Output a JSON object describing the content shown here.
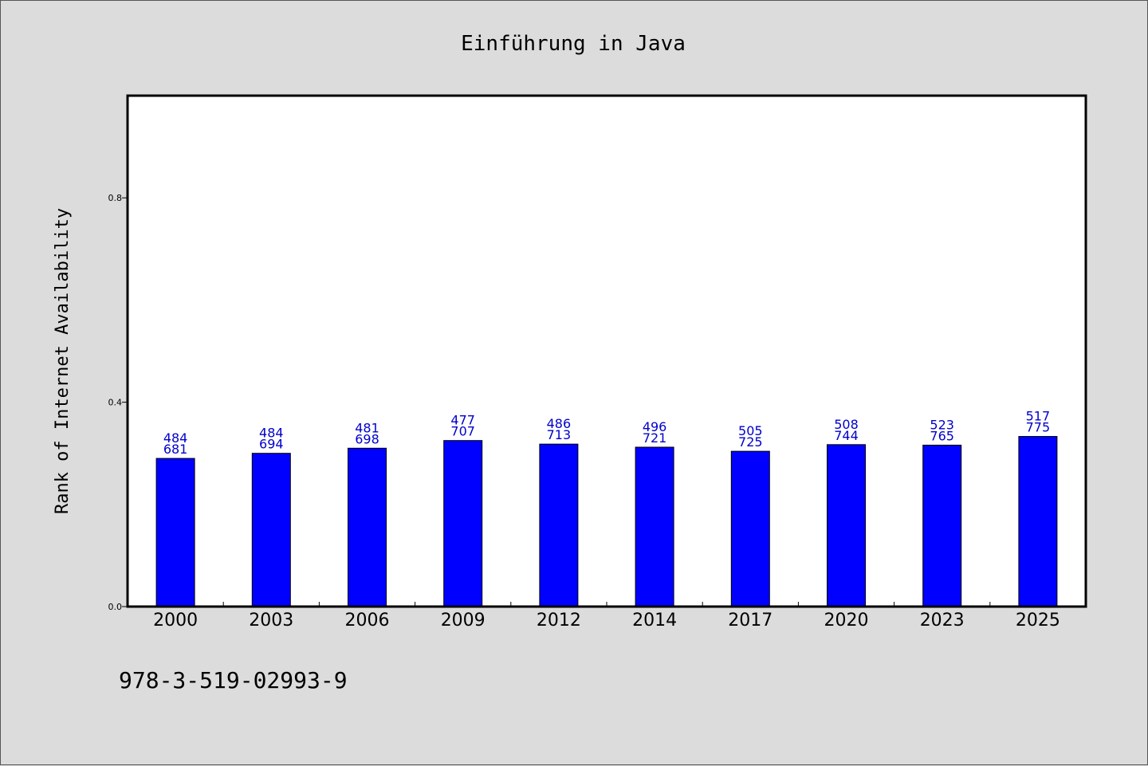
{
  "chart_data": {
    "type": "bar",
    "title": "Einführung in Java",
    "ylabel": "Rank of Internet Availability",
    "xlabel": "",
    "ylim": [
      0,
      1.0
    ],
    "yticks": [
      0.0,
      0.4,
      0.8
    ],
    "ytick_labels": [
      "0.0",
      "0.4",
      "0.8"
    ],
    "grid": false,
    "categories": [
      "2000",
      "2003",
      "2006",
      "2009",
      "2012",
      "2014",
      "2017",
      "2020",
      "2023",
      "2025"
    ],
    "values": [
      0.29,
      0.3,
      0.31,
      0.325,
      0.318,
      0.312,
      0.304,
      0.317,
      0.316,
      0.333
    ],
    "bar_labels": [
      [
        "484",
        "681"
      ],
      [
        "484",
        "694"
      ],
      [
        "481",
        "698"
      ],
      [
        "477",
        "707"
      ],
      [
        "486",
        "713"
      ],
      [
        "496",
        "721"
      ],
      [
        "505",
        "725"
      ],
      [
        "508",
        "744"
      ],
      [
        "523",
        "765"
      ],
      [
        "517",
        "775"
      ]
    ]
  },
  "footer_text": "978-3-519-02993-9",
  "colors": {
    "background": "#dcdcdc",
    "plot_background": "#ffffff",
    "bar_fill": "#0000ff",
    "bar_stroke": "#000000",
    "data_label": "#0000cc",
    "axis": "#000000"
  }
}
